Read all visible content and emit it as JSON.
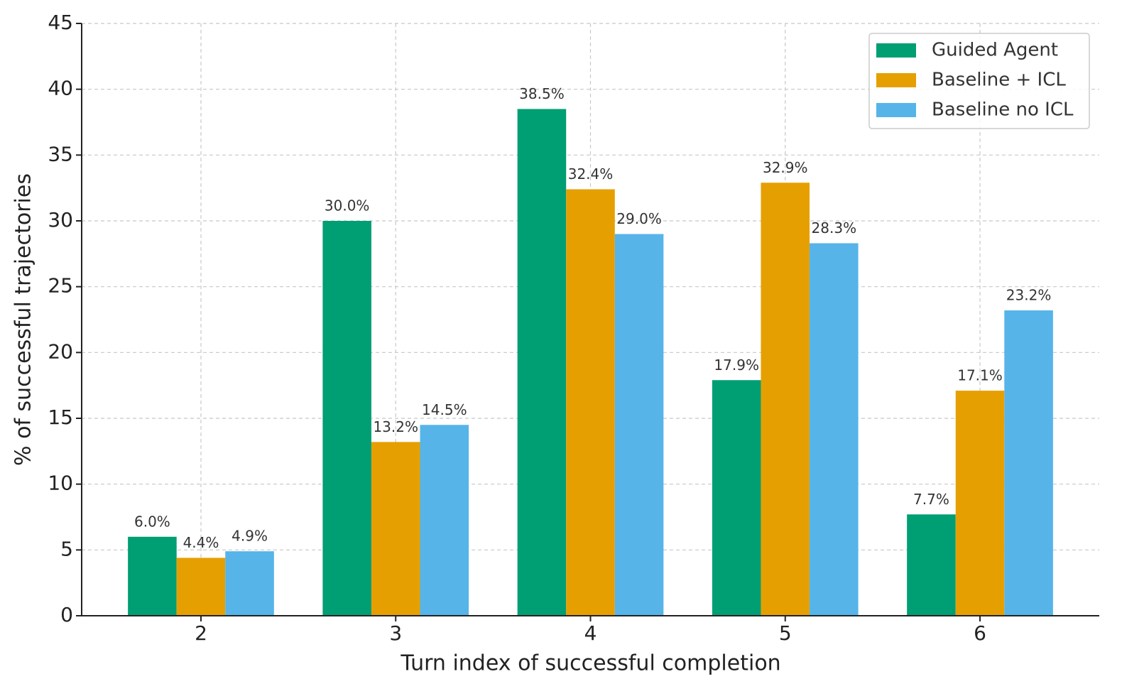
{
  "chart_data": {
    "type": "bar",
    "x_label": "Turn index of successful completion",
    "y_label": "% of successful trajectories",
    "categories": [
      "2",
      "3",
      "4",
      "5",
      "6"
    ],
    "series": [
      {
        "name": "Guided Agent",
        "color": "#009E73",
        "values": [
          6.0,
          30.0,
          38.5,
          17.9,
          7.7
        ],
        "value_labels": [
          "6.0%",
          "30.0%",
          "38.5%",
          "17.9%",
          "7.7%"
        ]
      },
      {
        "name": "Baseline + ICL",
        "color": "#E69F00",
        "values": [
          4.4,
          13.2,
          32.4,
          32.9,
          17.1
        ],
        "value_labels": [
          "4.4%",
          "13.2%",
          "32.4%",
          "32.9%",
          "17.1%"
        ]
      },
      {
        "name": "Baseline no ICL",
        "color": "#56B4E9",
        "values": [
          4.9,
          14.5,
          29.0,
          28.3,
          23.2
        ],
        "value_labels": [
          "4.9%",
          "14.5%",
          "29.0%",
          "28.3%",
          "23.2%"
        ]
      }
    ],
    "ylim": [
      0,
      45
    ],
    "yticks": [
      0,
      5,
      10,
      15,
      20,
      25,
      30,
      35,
      40,
      45
    ],
    "grid": true,
    "legend": "upper right"
  }
}
